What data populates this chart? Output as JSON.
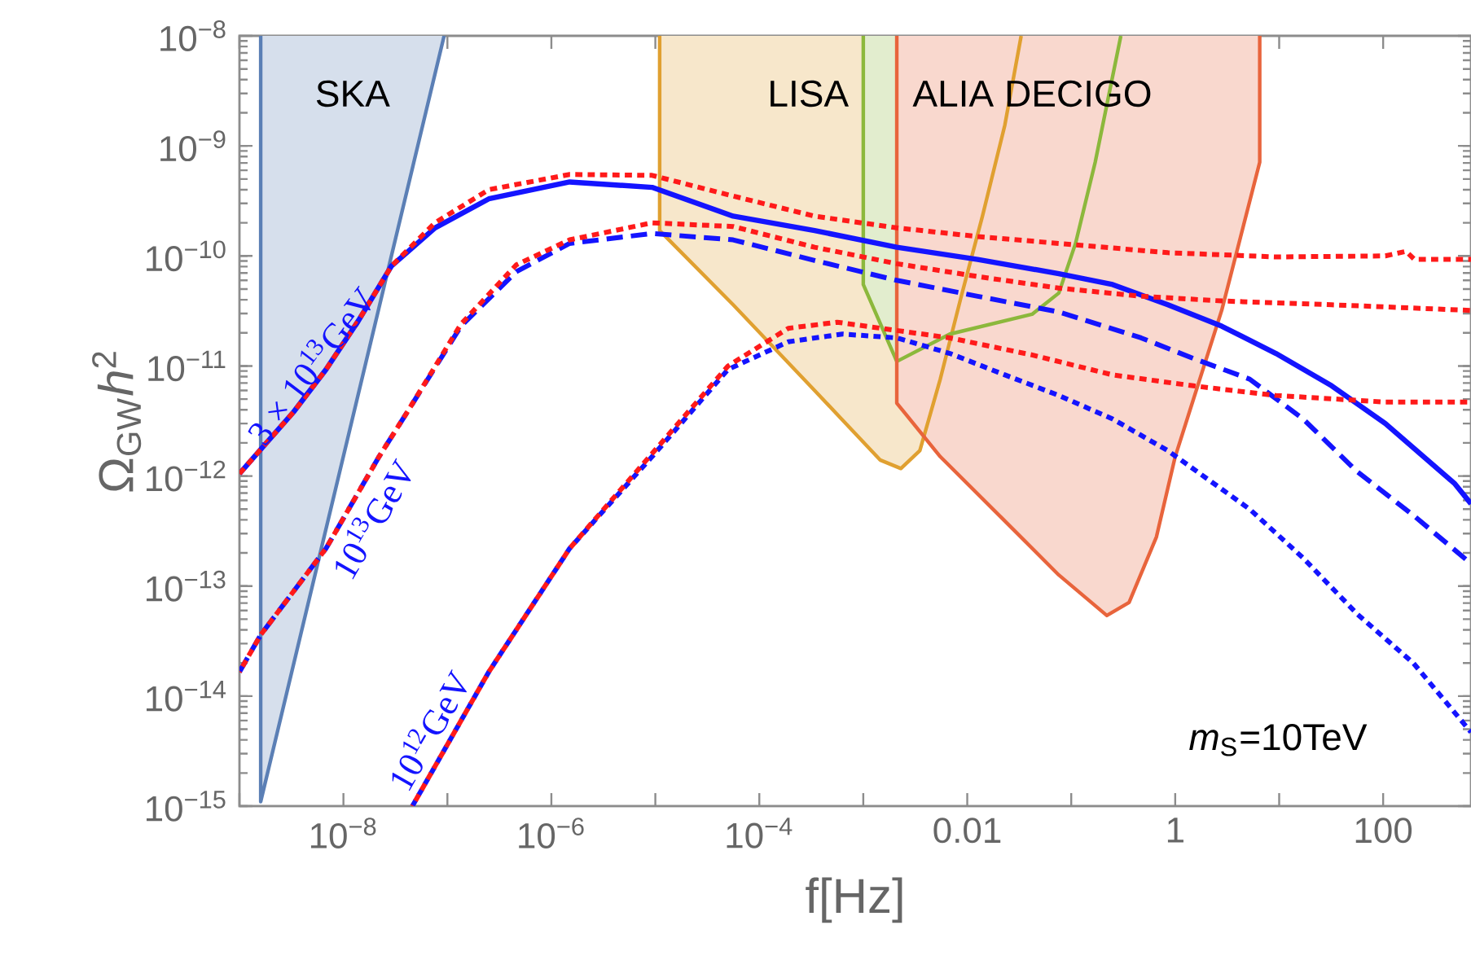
{
  "chart_data": {
    "type": "line",
    "xlabel": "f[Hz]",
    "ylabel": "Ω$_{GW}$*h*$^{2}$",
    "log": "xy",
    "xlim": [
      1e-09,
      700
    ],
    "ylim": [
      1e-15,
      1e-08
    ],
    "xticks": [
      {
        "value": 1e-09,
        "label": null
      },
      {
        "value": 1e-08,
        "label": "10$^{−8}$"
      },
      {
        "value": 1e-07,
        "label": null
      },
      {
        "value": 1e-06,
        "label": "10$^{−6}$"
      },
      {
        "value": 1e-05,
        "label": null
      },
      {
        "value": 0.0001,
        "label": "10$^{−4}$"
      },
      {
        "value": 0.001,
        "label": null
      },
      0.01,
      {
        "value": 0.1,
        "label": null
      },
      1,
      {
        "value": 10,
        "label": null
      },
      100
    ],
    "yticks": [
      {
        "value": 1e-15,
        "label": "10$^{−15}$"
      },
      {
        "value": 1e-14,
        "label": "10$^{−14}$"
      },
      {
        "value": 1e-13,
        "label": "10$^{−13}$"
      },
      {
        "value": 1e-12,
        "label": "10$^{−12}$"
      },
      {
        "value": 1e-11,
        "label": "10$^{−11}$"
      },
      {
        "value": 1e-10,
        "label": "10$^{−10}$"
      },
      {
        "value": 1e-09,
        "label": "10$^{−9}$"
      },
      {
        "value": 1e-08,
        "label": "10$^{−8}$"
      }
    ],
    "series": [
      {
        "name": "SKA",
        "type": "area",
        "color": "#5b7fb5",
        "x": [
          1.6e-09,
          1.6e-09,
          9.3e-08
        ],
        "values": [
          1e-08,
          1.1e-15,
          1e-08
        ]
      },
      {
        "name": "LISA",
        "type": "area",
        "color": "#e0a030",
        "x": [
          1.1e-05,
          1.1e-05,
          5.6e-05,
          0.00034,
          0.00145,
          0.0023,
          0.0035,
          0.0055,
          0.0087,
          0.014,
          0.023,
          0.033
        ],
        "values": [
          1e-08,
          1.7e-10,
          3.6e-11,
          6e-12,
          1.4e-12,
          1.17e-12,
          1.7e-12,
          7.6e-12,
          4.2e-11,
          2.3e-10,
          1.55e-09,
          1e-08
        ]
      },
      {
        "name": "ALIA",
        "type": "area",
        "color": "#8cb83c",
        "x": [
          0.001,
          0.001,
          0.0021,
          0.0068,
          0.042,
          0.076,
          0.11,
          0.17,
          0.3
        ],
        "values": [
          1e-08,
          5.5e-11,
          1.1e-11,
          1.95e-11,
          2.95e-11,
          4.6e-11,
          1.3e-10,
          7.1e-10,
          1e-08
        ]
      },
      {
        "name": "DECIGO",
        "type": "area",
        "color": "#e8643c",
        "x": [
          0.0021,
          0.0021,
          0.0055,
          0.023,
          0.076,
          0.22,
          0.36,
          0.66,
          1.0,
          2.8,
          6.5,
          6.5
        ],
        "values": [
          1e-08,
          4.6e-12,
          1.5e-12,
          3.9e-13,
          1.26e-13,
          5.4e-14,
          7.1e-14,
          2.8e-13,
          1.5e-12,
          3.2e-11,
          7.1e-10,
          1e-08
        ]
      },
      {
        "name": "3 × 10$^{13}$GeV",
        "color": "#1414ff",
        "line_style": "solid",
        "x": [
          1e-09,
          3.3e-09,
          6.8e-09,
          1.4e-08,
          2.9e-08,
          7.6e-08,
          2.5e-07,
          1.5e-06,
          9.3e-06,
          5.6e-05,
          0.00034,
          0.0021,
          0.0126,
          0.076,
          0.25,
          0.85,
          2.8,
          9.3,
          32,
          105,
          490,
          700
        ],
        "values": [
          1.05e-12,
          3.8e-12,
          9.3e-12,
          2.6e-11,
          8.1e-11,
          1.8e-10,
          3.3e-10,
          4.7e-10,
          4.2e-10,
          2.3e-10,
          1.7e-10,
          1.2e-10,
          9.3e-11,
          6.9e-11,
          5.5e-11,
          3.6e-11,
          2.3e-11,
          1.3e-11,
          6.6e-12,
          3e-12,
          8.5e-13,
          5.6e-13
        ]
      },
      {
        "color": "#ff1a1a",
        "line_style": "dotted",
        "x": [
          1e-09,
          3.3e-09,
          6.8e-09,
          1.4e-08,
          2.9e-08,
          7.6e-08,
          2.5e-07,
          1.5e-06,
          9.3e-06,
          5.6e-05,
          0.00034,
          0.0021,
          0.0126,
          0.076,
          0.85,
          9.3,
          105,
          166,
          200,
          700
        ],
        "values": [
          1.05e-12,
          3.8e-12,
          9.3e-12,
          2.6e-11,
          8.1e-11,
          2e-10,
          4e-10,
          5.5e-10,
          5.4e-10,
          3.5e-10,
          2.3e-10,
          1.8e-10,
          1.5e-10,
          1.3e-10,
          1.07e-10,
          9.8e-11,
          1e-10,
          1.1e-10,
          9.3e-11,
          9.3e-11
        ]
      },
      {
        "name": "10$^{13}$GeV",
        "color": "#1414ff",
        "line_style": "dashed",
        "x": [
          1e-09,
          1.6e-09,
          6.8e-09,
          2.2e-08,
          4.1e-08,
          1.35e-07,
          4.6e-07,
          1.5e-06,
          9.3e-06,
          5.6e-05,
          0.00034,
          0.0021,
          0.0126,
          0.076,
          0.47,
          1.5,
          5.2,
          17,
          56,
          195,
          700
        ],
        "values": [
          1.66e-14,
          3.6e-14,
          2.2e-13,
          1.5e-12,
          3.8e-12,
          2.3e-11,
          7.2e-11,
          1.3e-10,
          1.6e-10,
          1.4e-10,
          9.1e-11,
          6e-11,
          4.3e-11,
          3.1e-11,
          1.8e-11,
          1.17e-11,
          7.6e-12,
          3.3e-12,
          1.1e-12,
          4.4e-13,
          1.6e-13
        ]
      },
      {
        "color": "#ff1a1a",
        "line_style": "dotted",
        "x": [
          1e-09,
          1.6e-09,
          6.8e-09,
          2.2e-08,
          4.1e-08,
          1.35e-07,
          4.6e-07,
          1.5e-06,
          9.3e-06,
          5.6e-05,
          0.00034,
          0.0021,
          0.0126,
          0.076,
          0.47,
          2.8,
          32,
          700
        ],
        "values": [
          1.66e-14,
          3.6e-14,
          2.2e-13,
          1.5e-12,
          3.8e-12,
          2.4e-11,
          8.3e-11,
          1.4e-10,
          2e-10,
          1.85e-10,
          1.2e-10,
          8.5e-11,
          6.5e-11,
          5.1e-11,
          4.3e-11,
          3.9e-11,
          3.6e-11,
          3.2e-11
        ]
      },
      {
        "name": "10$^{12}$GeV",
        "color": "#1414ff",
        "line_style": "dotted",
        "x": [
          4.6e-08,
          2.5e-07,
          1.5e-06,
          9.3e-06,
          5e-05,
          0.00019,
          0.00063,
          0.0021,
          0.0068,
          0.023,
          0.076,
          0.25,
          0.85,
          5.2,
          17,
          56,
          195,
          700
        ],
        "values": [
          1e-15,
          1.66e-14,
          2.2e-13,
          1.5e-12,
          9.3e-12,
          1.66e-11,
          1.95e-11,
          1.8e-11,
          1.3e-11,
          8.3e-12,
          5.4e-12,
          3.3e-12,
          1.7e-12,
          5e-13,
          1.8e-13,
          5.6e-14,
          2e-14,
          4.7e-15
        ]
      },
      {
        "color": "#ff1a1a",
        "line_style": "dotted",
        "x": [
          4.6e-08,
          2.5e-07,
          1.5e-06,
          9.3e-06,
          5e-05,
          0.00019,
          0.00056,
          0.0068,
          0.042,
          0.25,
          1.5,
          9.3,
          105,
          700
        ],
        "values": [
          1e-15,
          1.66e-14,
          2.2e-13,
          1.6e-12,
          1e-11,
          2.2e-11,
          2.5e-11,
          1.8e-11,
          1.26e-11,
          8.3e-12,
          6.6e-12,
          5.4e-12,
          4.7e-12,
          4.7e-12
        ]
      }
    ],
    "annotations": [
      "*m*$_{S}$=10TeV"
    ]
  }
}
